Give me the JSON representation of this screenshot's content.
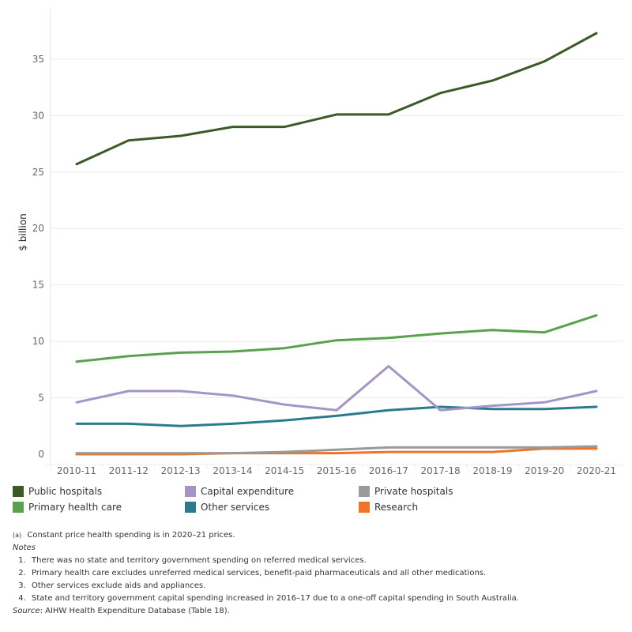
{
  "chart_data": {
    "type": "line",
    "title": "",
    "xlabel": "",
    "ylabel": "$ billion",
    "ylim": [
      0,
      39.4
    ],
    "yticks": [
      0,
      5,
      10,
      15,
      20,
      25,
      30,
      35
    ],
    "grid": true,
    "legend_position": "bottom",
    "categories": [
      "2010-11",
      "2011-12",
      "2012-13",
      "2013-14",
      "2014-15",
      "2015-16",
      "2016-17",
      "2017-18",
      "2018-19",
      "2019-20",
      "2020-21"
    ],
    "series": [
      {
        "name": "Public hospitals",
        "color": "#3b5a26",
        "values": [
          25.7,
          27.8,
          28.2,
          29.0,
          29.0,
          30.1,
          30.1,
          32.0,
          33.1,
          34.8,
          37.3
        ]
      },
      {
        "name": "Primary health care",
        "color": "#59a14f",
        "values": [
          8.2,
          8.7,
          9.0,
          9.1,
          9.4,
          10.1,
          10.3,
          10.7,
          11.0,
          10.8,
          12.3
        ]
      },
      {
        "name": "Capital expenditure",
        "color": "#a494c8",
        "values": [
          4.6,
          5.6,
          5.6,
          5.2,
          4.4,
          3.9,
          7.8,
          3.9,
          4.3,
          4.6,
          5.6
        ]
      },
      {
        "name": "Other services",
        "color": "#2b7b8e",
        "values": [
          2.7,
          2.7,
          2.5,
          2.7,
          3.0,
          3.4,
          3.9,
          4.2,
          4.0,
          4.0,
          4.2
        ]
      },
      {
        "name": "Private hospitals",
        "color": "#9a9a9a",
        "values": [
          0.1,
          0.1,
          0.1,
          0.1,
          0.2,
          0.4,
          0.6,
          0.6,
          0.6,
          0.6,
          0.7
        ]
      },
      {
        "name": "Research",
        "color": "#f07427",
        "values": [
          0.0,
          0.0,
          0.0,
          0.1,
          0.1,
          0.1,
          0.2,
          0.2,
          0.2,
          0.5,
          0.5
        ]
      }
    ]
  },
  "legend": {
    "items": [
      {
        "label": "Public hospitals",
        "color": "#3b5a26"
      },
      {
        "label": "Capital expenditure",
        "color": "#a494c8"
      },
      {
        "label": "Private hospitals",
        "color": "#9a9a9a"
      },
      {
        "label": "Primary health care",
        "color": "#59a14f"
      },
      {
        "label": "Other services",
        "color": "#2b7b8e"
      },
      {
        "label": "Research",
        "color": "#f07427"
      }
    ]
  },
  "notes": {
    "footnote_marker": "(a)",
    "footnote_text": "Constant price health spending is in 2020–21 prices.",
    "notes_heading": "Notes",
    "items": [
      "There was no state and territory government spending on referred medical services.",
      "Primary health care excludes unreferred medical services, benefit-paid pharmaceuticals and all other medications.",
      "Other services exclude aids and appliances.",
      "State and territory government capital spending increased in 2016–17 due to a one-off capital spending in South Australia."
    ],
    "source_label": "Source",
    "source_text": ": AIHW Health Expenditure Database (Table 18)."
  }
}
